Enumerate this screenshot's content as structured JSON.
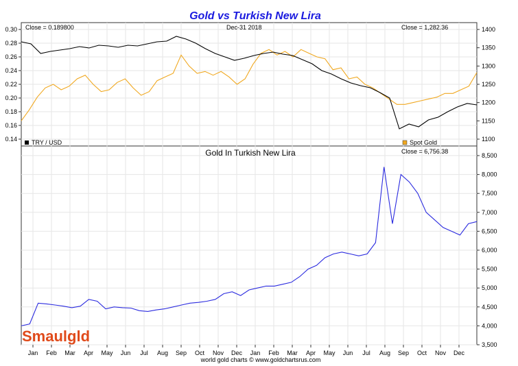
{
  "chart_data": [
    {
      "type": "line",
      "title": "Gold vs Turkish New Lira",
      "date_label": "Dec-31  2018",
      "left_close": "Close = 0.189800",
      "right_close": "Close = 1,282.36",
      "left_ylim": [
        0.14,
        0.3
      ],
      "left_ticks": [
        "0.30",
        "0.28",
        "0.26",
        "0.24",
        "0.22",
        "0.20",
        "0.18",
        "0.16",
        "0.14"
      ],
      "right_ylim": [
        1100,
        1400
      ],
      "right_ticks": [
        "1400",
        "1350",
        "1300",
        "1250",
        "1200",
        "1150",
        "1100"
      ],
      "series": [
        {
          "name": "TRY / USD",
          "axis": "left",
          "color": "#000000",
          "values": [
            0.282,
            0.279,
            0.265,
            0.268,
            0.27,
            0.272,
            0.275,
            0.273,
            0.277,
            0.276,
            0.274,
            0.277,
            0.276,
            0.279,
            0.282,
            0.283,
            0.29,
            0.286,
            0.28,
            0.272,
            0.265,
            0.26,
            0.255,
            0.258,
            0.262,
            0.265,
            0.267,
            0.264,
            0.262,
            0.256,
            0.25,
            0.24,
            0.235,
            0.228,
            0.222,
            0.218,
            0.215,
            0.208,
            0.2,
            0.155,
            0.162,
            0.158,
            0.168,
            0.172,
            0.18,
            0.187,
            0.192,
            0.19
          ]
        },
        {
          "name": "Spot Gold",
          "axis": "right",
          "color": "#f0a820",
          "values": [
            1150,
            1180,
            1215,
            1240,
            1250,
            1235,
            1245,
            1265,
            1275,
            1250,
            1230,
            1235,
            1255,
            1265,
            1240,
            1220,
            1230,
            1260,
            1270,
            1280,
            1330,
            1300,
            1280,
            1285,
            1275,
            1285,
            1270,
            1250,
            1265,
            1305,
            1335,
            1345,
            1330,
            1340,
            1325,
            1345,
            1335,
            1325,
            1320,
            1290,
            1295,
            1265,
            1270,
            1250,
            1240,
            1225,
            1210,
            1195,
            1195,
            1200,
            1205,
            1210,
            1215,
            1225,
            1225,
            1235,
            1245,
            1282
          ]
        }
      ]
    },
    {
      "type": "line",
      "title": "Gold In Turkish New Lira",
      "close": "Close = 6,756.38",
      "ylim": [
        3500,
        8500
      ],
      "right_ticks": [
        "8,500",
        "8,000",
        "7,500",
        "7,000",
        "6,500",
        "6,000",
        "5,500",
        "5,000",
        "4,500",
        "4,000",
        "3,500"
      ],
      "series": [
        {
          "name": "Gold In Turkish New Lira",
          "color": "#2a2adf",
          "values": [
            4000,
            4050,
            4600,
            4580,
            4550,
            4520,
            4480,
            4520,
            4700,
            4650,
            4450,
            4500,
            4480,
            4470,
            4400,
            4380,
            4420,
            4450,
            4500,
            4550,
            4600,
            4620,
            4650,
            4700,
            4850,
            4900,
            4800,
            4950,
            5000,
            5050,
            5050,
            5100,
            5150,
            5300,
            5500,
            5600,
            5800,
            5900,
            5950,
            5900,
            5850,
            5900,
            6200,
            8200,
            6700,
            8000,
            7800,
            7500,
            7000,
            6800,
            6600,
            6500,
            6400,
            6700,
            6756
          ]
        }
      ]
    }
  ],
  "x_axis": {
    "ticks": [
      "Jan",
      "Feb",
      "Mar",
      "Apr",
      "May",
      "Jun",
      "Jul",
      "Aug",
      "Sep",
      "Oct",
      "Nov",
      "Dec",
      "Jan",
      "Feb",
      "Mar",
      "Apr",
      "May",
      "Jun",
      "Jul",
      "Aug",
      "Sep",
      "Oct",
      "Nov",
      "Dec"
    ]
  },
  "footer": "world gold charts © www.goldchartsrus.com",
  "logo": "Smaulgld"
}
